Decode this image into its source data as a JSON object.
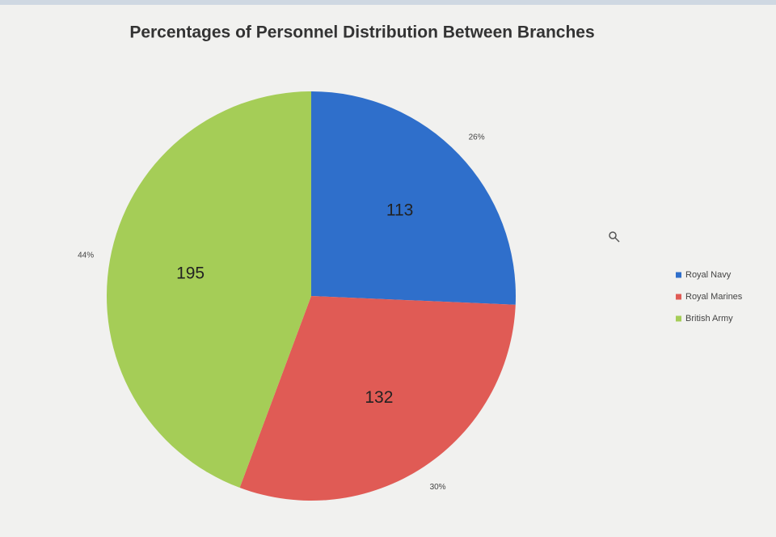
{
  "chart_data": {
    "type": "pie",
    "title": "Percentages of Personnel Distribution Between Branches",
    "categories": [
      "Royal Navy",
      "Royal Marines",
      "British Army"
    ],
    "values": [
      113,
      132,
      195
    ],
    "percent_labels": [
      "26%",
      "30%",
      "44%"
    ],
    "colors": [
      "#2f6fcb",
      "#e05b55",
      "#a5cd57"
    ],
    "legend": "right"
  }
}
